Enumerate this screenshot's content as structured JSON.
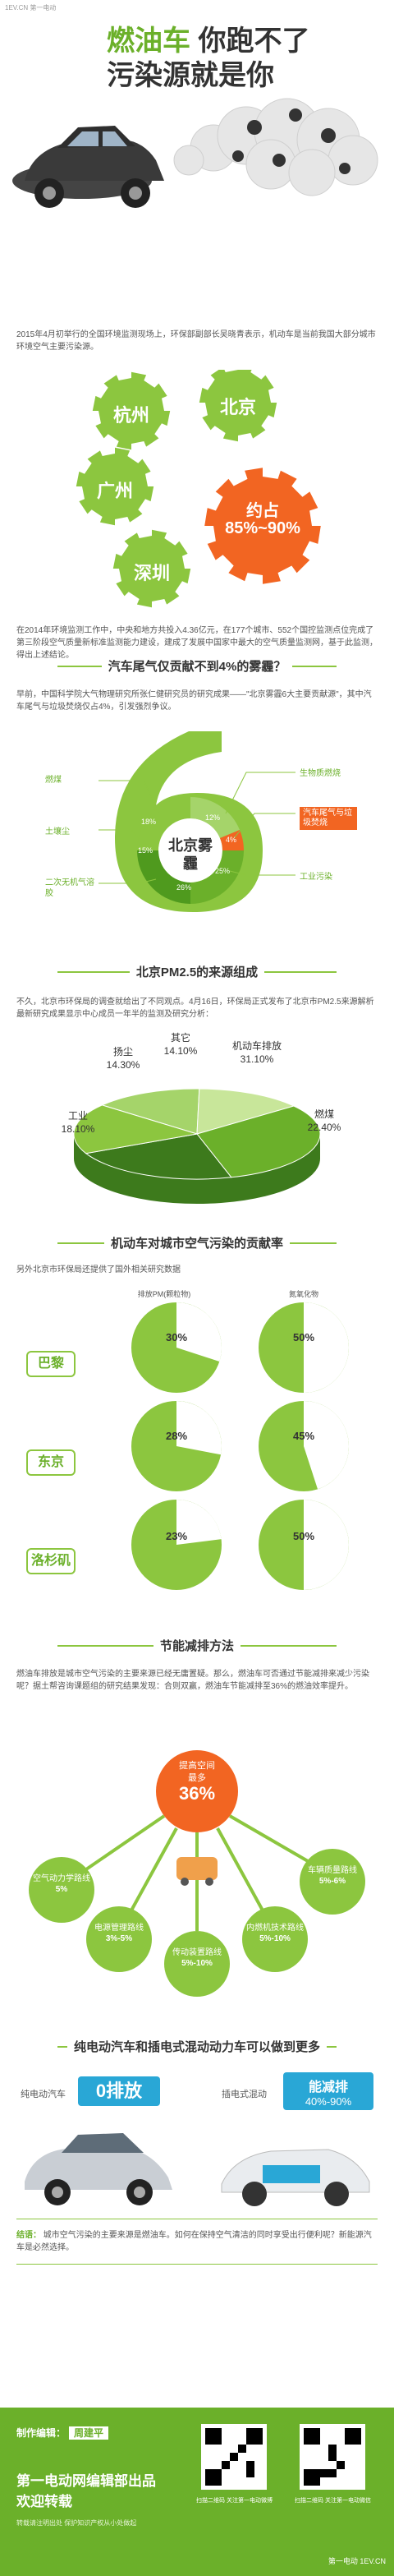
{
  "header": {
    "site": "1EV.CN 第一电动"
  },
  "hero": {
    "title_green": "燃油车",
    "title_rest": "你跑不了",
    "title_line2": "污染源就是你"
  },
  "intro": {
    "text": "2015年4月初举行的全国环境监测现场上，环保部副部长吴晓青表示，机动车是当前我国大部分城市环境空气主要污染源。"
  },
  "cities": {
    "items": [
      "杭州",
      "北京",
      "广州",
      "深圳"
    ],
    "about_label": "约占",
    "about_value": "85%~90%"
  },
  "stats": {
    "text": "在2014年环境监测工作中，中央和地方共投入4.36亿元，在177个城市、552个国控监测点位完成了第三阶段空气质量新标准监测能力建设，建成了发展中国家中最大的空气质量监测网，基于此监测，得出上述结论。"
  },
  "section1": {
    "title": "汽车尾气仅贡献不到4%的雾霾？",
    "text": "早前，中国科学院大气物理研究所张仁健研究员的研究成果——\"北京雾霾6大主要贡献源\"，其中汽车尾气与垃圾焚烧仅占4%，引发强烈争议。",
    "center": "北京雾霾",
    "labels": [
      "燃煤",
      "土壤尘",
      "二次无机气溶胶",
      "生物质燃烧",
      "汽车尾气与垃圾焚烧",
      "工业污染"
    ],
    "pcts": [
      "18%",
      "15%",
      "26%",
      "12%",
      "4%",
      "25%"
    ]
  },
  "section2": {
    "title": "北京PM2.5的来源组成",
    "text": "不久，北京市环保局的调查就给出了不同观点。4月16日，环保局正式发布了北京市PM2.5来源解析最新研究成果显示中心成员一年半的监测及研究分析：",
    "slices": [
      {
        "label": "扬尘",
        "value": "14.30%"
      },
      {
        "label": "其它",
        "value": "14.10%"
      },
      {
        "label": "机动车排放",
        "value": "31.10%"
      },
      {
        "label": "燃煤",
        "value": "22.40%"
      },
      {
        "label": "工业",
        "value": "18.10%"
      }
    ]
  },
  "section3": {
    "title": "机动车对城市空气污染的贡献率",
    "text": "另外北京市环保局还提供了国外相关研究数据",
    "col1": "排放PM(颗粒物)",
    "col2": "氮氧化物",
    "rows": [
      {
        "city": "巴黎",
        "pm": "30%",
        "nox": "50%",
        "pm_frac": 0.3,
        "nox_frac": 0.5
      },
      {
        "city": "东京",
        "pm": "28%",
        "nox": "45%",
        "pm_frac": 0.28,
        "nox_frac": 0.45
      },
      {
        "city": "洛杉矶",
        "pm": "23%",
        "nox": "50%",
        "pm_frac": 0.23,
        "nox_frac": 0.5
      }
    ]
  },
  "section4": {
    "title": "节能减排方法",
    "text": "燃油车排放是城市空气污染的主要来源已经无庸置疑。那么，燃油车可否通过节能减排来减少污染呢？据土帮咨询课题组的研究结果发现：合则双赢，燃油车节能减排至36%的燃油效率提升。",
    "center_label": "提高空间",
    "center_sub": "最多",
    "center_value": "36%",
    "items": [
      {
        "label": "空气动力学路线",
        "value": "5%"
      },
      {
        "label": "电源管理路线",
        "value": "3%-5%"
      },
      {
        "label": "传动装置路线",
        "value": "5%-10%"
      },
      {
        "label": "内燃机技术路线",
        "value": "5%-10%"
      },
      {
        "label": "车辆质量路线",
        "value": "5%-6%"
      }
    ]
  },
  "section5": {
    "title": "纯电动汽车和插电式混动动力车可以做到更多",
    "ev_label": "纯电动汽车",
    "ev_value": "0排放",
    "phev_label": "插电式混动",
    "phev_value": "能减排",
    "phev_range": "40%-90%"
  },
  "summary": {
    "tag": "结语：",
    "text": "城市空气污染的主要来源是燃油车。如何在保持空气清洁的同时享受出行便利呢？新能源汽车是必然选择。"
  },
  "footer": {
    "editor_label": "制作编辑：",
    "editor_name": "周建平",
    "org": "第一电动网编辑部出品",
    "welcome": "欢迎转载",
    "note": "转载请注明出处 保护知识产权从小处做起",
    "qr1_caption": "扫描二维码 关注第一电动微博",
    "qr2_caption": "扫描二维码 关注第一电动微信",
    "brand": "第一电动 1EV.CN"
  },
  "colors": {
    "accent": "#6bb02a",
    "light": "#8cc63f",
    "orange": "#f26522",
    "dark": "#3d7a1c"
  }
}
